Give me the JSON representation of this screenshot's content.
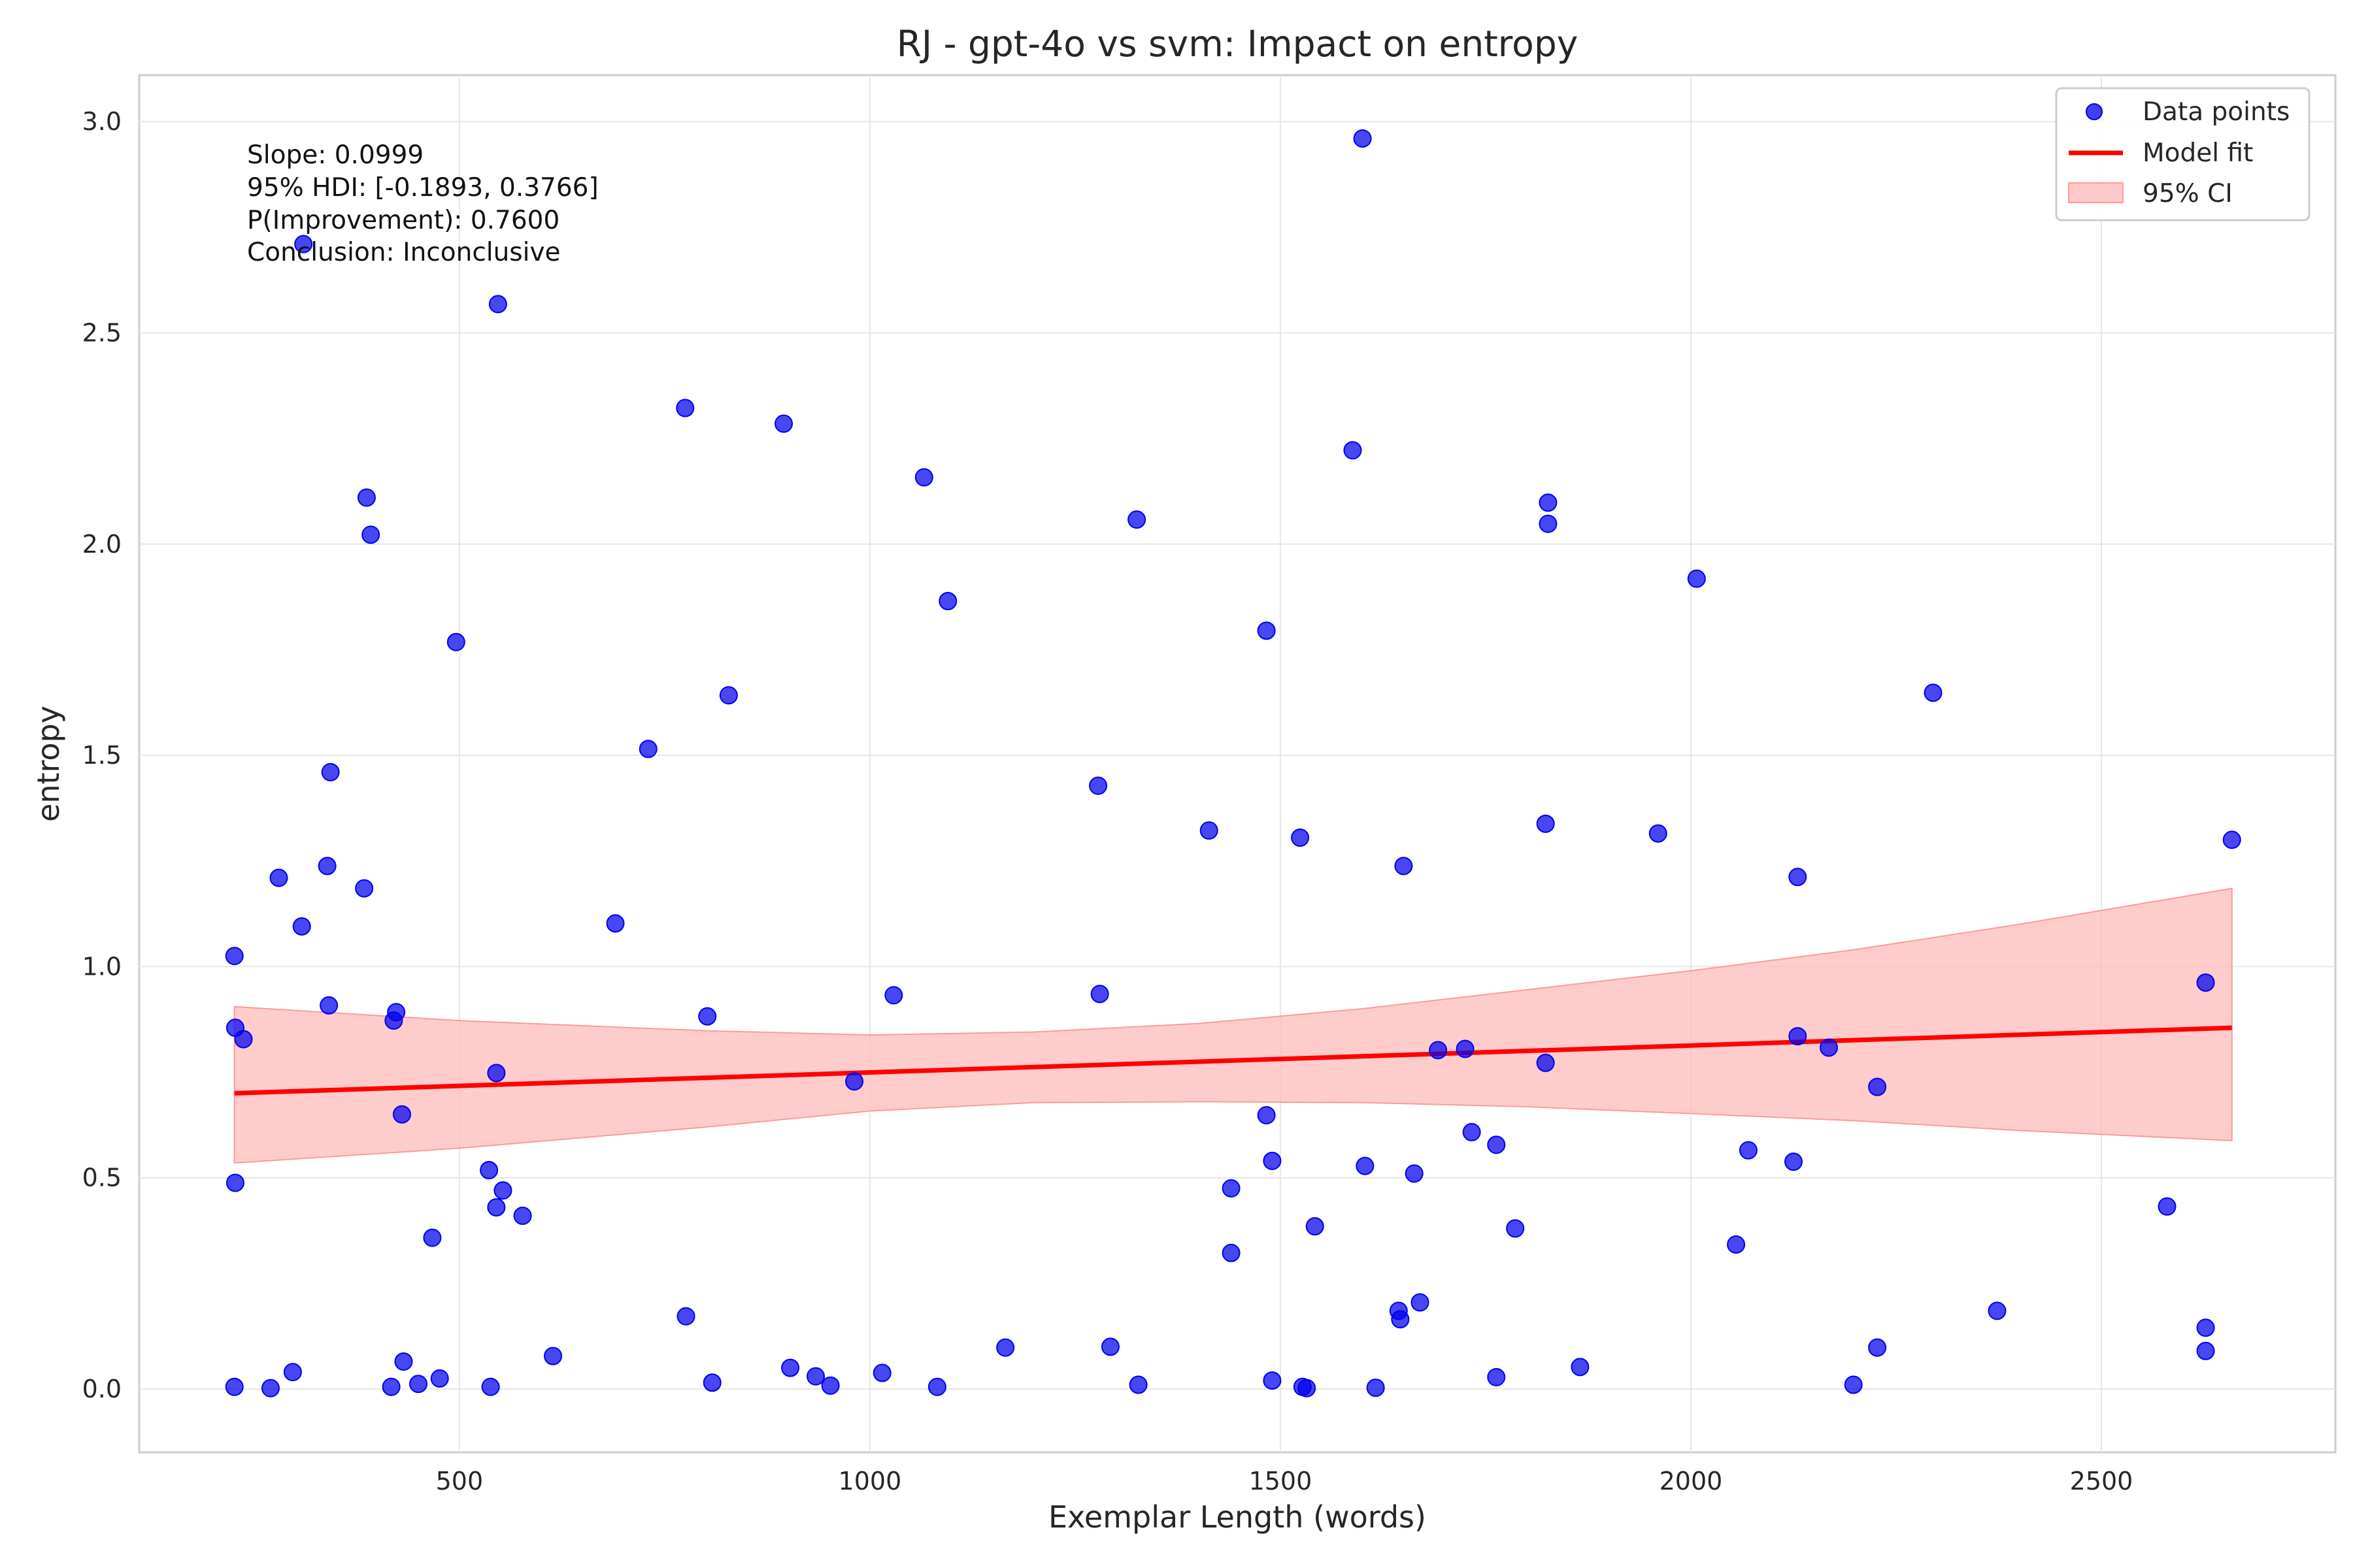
{
  "chart_data": {
    "type": "scatter",
    "title": "RJ - gpt-4o vs svm: Impact on entropy",
    "xlabel": "Exemplar Length (words)",
    "ylabel": "entropy",
    "xlim": [
      110,
      2785
    ],
    "ylim": [
      -0.15,
      3.11
    ],
    "xticks": [
      500,
      1000,
      1500,
      2000,
      2500
    ],
    "yticks": [
      0.0,
      0.5,
      1.0,
      1.5,
      2.0,
      2.5,
      3.0
    ],
    "xtick_labels": [
      "500",
      "1000",
      "1500",
      "2000",
      "2500"
    ],
    "ytick_labels": [
      "0.0",
      "0.5",
      "1.0",
      "1.5",
      "2.0",
      "2.5",
      "3.0"
    ],
    "grid": true,
    "legend_position": "top-right",
    "annotations": [
      "Slope: 0.0999",
      "95% HDI: [-0.1893, 0.3766]",
      "P(Improvement): 0.7600",
      "Conclusion: Inconclusive"
    ],
    "colors": {
      "points": "#0000ee",
      "fit": "#ff0000",
      "ci": "#ffbbbb"
    },
    "series": [
      {
        "name": "Data points",
        "kind": "scatter",
        "points": [
          [
            226,
            1.025
          ],
          [
            227,
            0.855
          ],
          [
            237,
            0.828
          ],
          [
            227,
            0.488
          ],
          [
            226,
            0.005
          ],
          [
            270,
            0.002
          ],
          [
            280,
            1.21
          ],
          [
            297,
            0.04
          ],
          [
            308,
            1.095
          ],
          [
            310,
            2.71
          ],
          [
            339,
            1.238
          ],
          [
            341,
            0.908
          ],
          [
            343,
            1.46
          ],
          [
            384,
            1.185
          ],
          [
            387,
            2.11
          ],
          [
            392,
            2.022
          ],
          [
            420,
            0.872
          ],
          [
            423,
            0.892
          ],
          [
            430,
            0.65
          ],
          [
            432,
            0.065
          ],
          [
            417,
            0.005
          ],
          [
            450,
            0.012
          ],
          [
            467,
            0.358
          ],
          [
            476,
            0.025
          ],
          [
            496,
            1.768
          ],
          [
            536,
            0.518
          ],
          [
            538,
            0.005
          ],
          [
            545,
            0.748
          ],
          [
            545,
            0.43
          ],
          [
            547,
            2.568
          ],
          [
            553,
            0.47
          ],
          [
            577,
            0.41
          ],
          [
            614,
            0.078
          ],
          [
            690,
            1.102
          ],
          [
            730,
            1.515
          ],
          [
            775,
            2.322
          ],
          [
            776,
            0.172
          ],
          [
            802,
            0.882
          ],
          [
            808,
            0.015
          ],
          [
            828,
            1.642
          ],
          [
            895,
            2.285
          ],
          [
            903,
            0.05
          ],
          [
            934,
            0.03
          ],
          [
            952,
            0.008
          ],
          [
            981,
            0.728
          ],
          [
            1015,
            0.038
          ],
          [
            1029,
            0.932
          ],
          [
            1066,
            2.158
          ],
          [
            1082,
            0.005
          ],
          [
            1095,
            1.865
          ],
          [
            1165,
            0.098
          ],
          [
            1278,
            1.428
          ],
          [
            1280,
            0.935
          ],
          [
            1293,
            0.1
          ],
          [
            1325,
            2.058
          ],
          [
            1327,
            0.01
          ],
          [
            1413,
            1.322
          ],
          [
            1440,
            0.475
          ],
          [
            1440,
            0.322
          ],
          [
            1483,
            1.795
          ],
          [
            1483,
            0.648
          ],
          [
            1490,
            0.54
          ],
          [
            1490,
            0.02
          ],
          [
            1524,
            1.305
          ],
          [
            1527,
            0.005
          ],
          [
            1532,
            0.002
          ],
          [
            1542,
            0.385
          ],
          [
            1588,
            2.222
          ],
          [
            1600,
            2.96
          ],
          [
            1603,
            0.528
          ],
          [
            1616,
            0.003
          ],
          [
            1644,
            0.185
          ],
          [
            1646,
            0.165
          ],
          [
            1650,
            1.238
          ],
          [
            1663,
            0.51
          ],
          [
            1670,
            0.205
          ],
          [
            1692,
            0.802
          ],
          [
            1725,
            0.805
          ],
          [
            1733,
            0.608
          ],
          [
            1763,
            0.578
          ],
          [
            1763,
            0.028
          ],
          [
            1786,
            0.38
          ],
          [
            1823,
            1.338
          ],
          [
            1823,
            0.772
          ],
          [
            1826,
            2.098
          ],
          [
            1826,
            2.048
          ],
          [
            1865,
            0.052
          ],
          [
            1960,
            1.315
          ],
          [
            2007,
            1.918
          ],
          [
            2055,
            0.342
          ],
          [
            2070,
            0.565
          ],
          [
            2125,
            0.538
          ],
          [
            2130,
            1.212
          ],
          [
            2130,
            0.835
          ],
          [
            2168,
            0.808
          ],
          [
            2198,
            0.01
          ],
          [
            2227,
            0.098
          ],
          [
            2227,
            0.715
          ],
          [
            2295,
            1.648
          ],
          [
            2373,
            0.185
          ],
          [
            2580,
            0.432
          ],
          [
            2627,
            0.962
          ],
          [
            2627,
            0.145
          ],
          [
            2627,
            0.09
          ],
          [
            2659,
            1.3
          ]
        ]
      },
      {
        "name": "Model fit",
        "kind": "line",
        "x": [
          226,
          2659
        ],
        "y": [
          0.7,
          0.855
        ]
      },
      {
        "name": "95% CI",
        "kind": "band",
        "x": [
          226,
          500,
          800,
          1000,
          1200,
          1400,
          1600,
          1800,
          2000,
          2200,
          2400,
          2659
        ],
        "upper": [
          0.905,
          0.872,
          0.848,
          0.838,
          0.845,
          0.865,
          0.9,
          0.945,
          0.99,
          1.04,
          1.1,
          1.185
        ],
        "lower": [
          0.535,
          0.57,
          0.62,
          0.658,
          0.678,
          0.68,
          0.678,
          0.668,
          0.652,
          0.635,
          0.612,
          0.588
        ]
      }
    ]
  }
}
